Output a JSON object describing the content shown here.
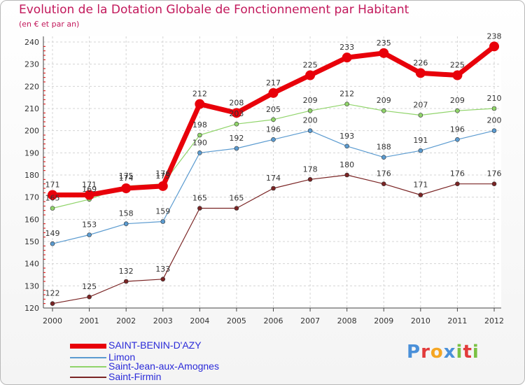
{
  "title": "Evolution de la Dotation Globale de Fonctionnement par Habitant",
  "subtitle": "(en € et par an)",
  "logo": {
    "text": "Proxiti",
    "letters": [
      "P",
      "r",
      "o",
      "x",
      "i",
      "t",
      "i"
    ],
    "colors": [
      "#4a90d9",
      "#e23b3b",
      "#f5a623",
      "#4a90d9",
      "#7ac143",
      "#e23b3b",
      "#7ac143"
    ]
  },
  "chart_data": {
    "type": "line",
    "title": "Evolution de la Dotation Globale de Fonctionnement par Habitant",
    "subtitle": "(en € et par an)",
    "x": [
      "2000",
      "2001",
      "2002",
      "2003",
      "2004",
      "2005",
      "2006",
      "2007",
      "2008",
      "2009",
      "2010",
      "2011",
      "2012"
    ],
    "ylim": [
      120,
      240
    ],
    "yticks": [
      120,
      130,
      140,
      150,
      160,
      170,
      180,
      190,
      200,
      210,
      220,
      230,
      240
    ],
    "grid": true,
    "legend_position": "bottom-left",
    "series": [
      {
        "name": "SAINT-BENIN-D'AZY",
        "color": "#e8000a",
        "values": [
          171,
          171,
          174,
          175,
          212,
          208,
          217,
          225,
          233,
          235,
          226,
          225,
          238
        ]
      },
      {
        "name": "Limon",
        "color": "#5b9bd0",
        "values": [
          149,
          153,
          158,
          159,
          190,
          192,
          196,
          200,
          193,
          188,
          191,
          196,
          200
        ]
      },
      {
        "name": "Saint-Jean-aux-Amognes",
        "color": "#90d46a",
        "values": [
          165,
          169,
          175,
          176,
          198,
          203,
          205,
          209,
          212,
          209,
          207,
          209,
          210
        ]
      },
      {
        "name": "Saint-Firmin",
        "color": "#7a2424",
        "values": [
          122,
          125,
          132,
          133,
          165,
          165,
          174,
          178,
          180,
          176,
          171,
          176,
          176
        ]
      }
    ]
  }
}
